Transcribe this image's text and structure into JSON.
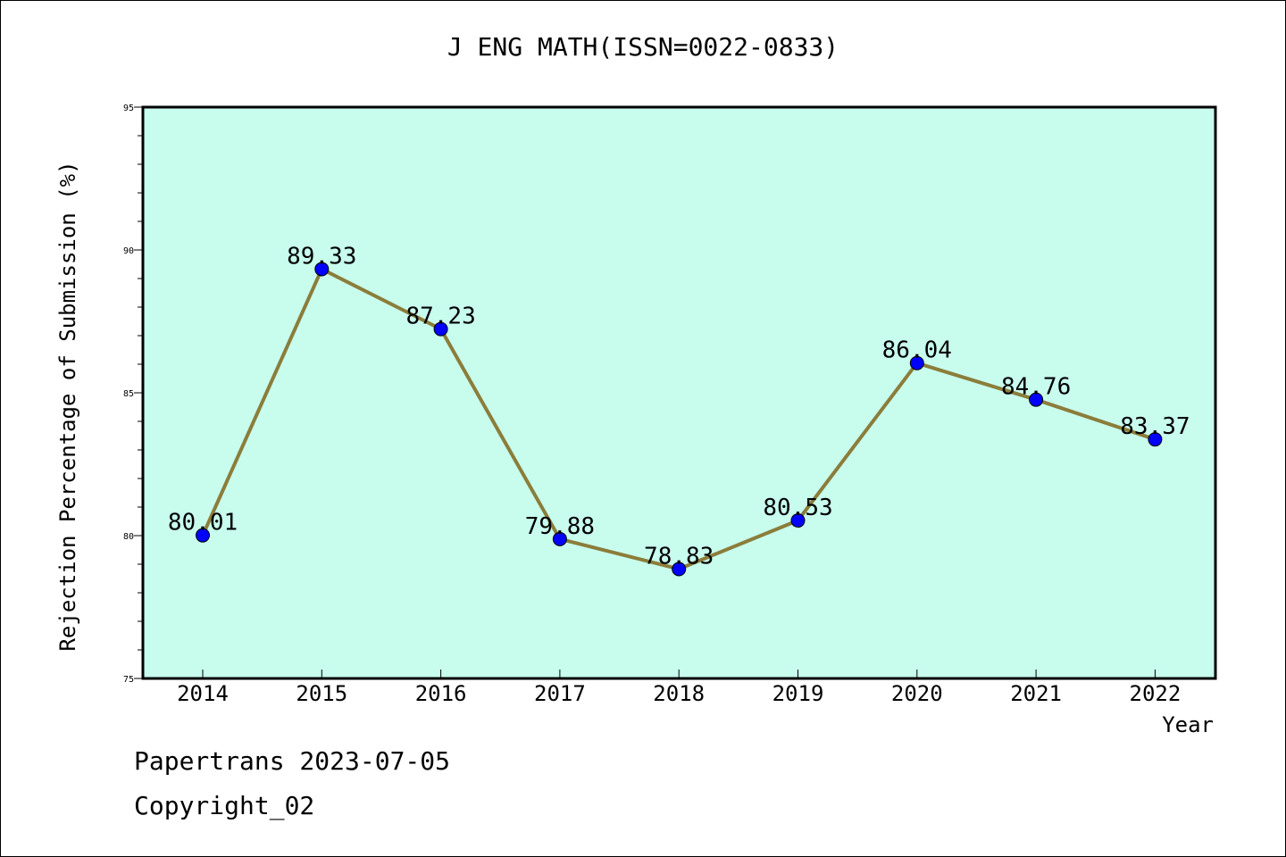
{
  "chart_data": {
    "type": "line",
    "title": "J ENG MATH(ISSN=0022-0833)",
    "xlabel": "Year",
    "ylabel": "Rejection Percentage of Submission (%)",
    "x": [
      "2014",
      "2015",
      "2016",
      "2017",
      "2018",
      "2019",
      "2020",
      "2021",
      "2022"
    ],
    "series": [
      {
        "values": [
          80.01,
          89.33,
          87.23,
          79.88,
          78.83,
          80.53,
          86.04,
          84.76,
          83.37
        ]
      }
    ],
    "data_labels": [
      "80.01",
      "89.33",
      "87.23",
      "79.88",
      "78.83",
      "80.53",
      "86.04",
      "84.76",
      "83.37"
    ],
    "ylim": [
      75,
      95
    ],
    "yticks": [
      "75",
      "80",
      "85",
      "90",
      "95"
    ],
    "grid": false,
    "legend": "none",
    "colors": {
      "plot_background": "#c8fdee",
      "line": "#8b7d3a",
      "marker": "#0000ff"
    }
  },
  "footer": {
    "line1": "Papertrans 2023-07-05",
    "line2": "Copyright_02"
  }
}
